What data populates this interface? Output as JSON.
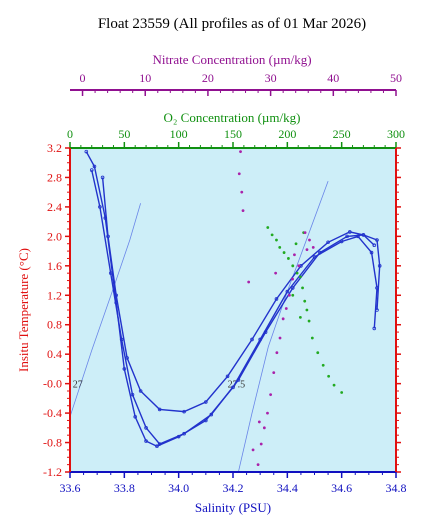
{
  "chart_data": {
    "type": "scatter",
    "title": "Float 23559  (All profiles as of 01 Mar 2026)",
    "x_axis": {
      "label": "Salinity (PSU)",
      "range": [
        33.6,
        34.8
      ],
      "ticks": [
        "33.6",
        "33.8",
        "34.0",
        "34.2",
        "34.4",
        "34.6",
        "34.8"
      ],
      "color": "#1010c0"
    },
    "y_axis": {
      "label": "Insitu Temperature (°C)",
      "range": [
        -1.2,
        3.2
      ],
      "ticks": [
        "-1.2",
        "-0.8",
        "-0.4",
        "-0.0",
        "0.4",
        "0.8",
        "1.2",
        "1.6",
        "2.0",
        "2.4",
        "2.8",
        "3.2"
      ],
      "color": "#e01010"
    },
    "oxygen_axis": {
      "label": "O₂ Concentration (µm/kg)",
      "range": [
        0,
        300
      ],
      "ticks": [
        "0",
        "50",
        "100",
        "150",
        "200",
        "250",
        "300"
      ],
      "color": "#109010"
    },
    "nitrate_axis": {
      "label": "Nitrate Concentration (µm/kg)",
      "range": [
        -2,
        50
      ],
      "ticks": [
        "0",
        "10",
        "20",
        "30",
        "40",
        "50"
      ],
      "color": "#901090"
    },
    "isopycnals": [
      {
        "label": "27",
        "points": [
          [
            33.6,
            -0.45
          ],
          [
            33.68,
            0.45
          ],
          [
            33.76,
            1.3
          ],
          [
            33.82,
            1.95
          ],
          [
            33.86,
            2.45
          ]
        ]
      },
      {
        "label": "27.5",
        "points": [
          [
            34.22,
            -1.2
          ],
          [
            34.27,
            -0.4
          ],
          [
            34.33,
            0.5
          ],
          [
            34.4,
            1.25
          ],
          [
            34.48,
            2.05
          ],
          [
            34.55,
            2.75
          ]
        ]
      }
    ],
    "isopycnal_label_positions": [
      [
        33.61,
        -0.05
      ],
      [
        34.18,
        -0.05
      ]
    ],
    "series": [
      {
        "type": "line",
        "color": "#2233cc",
        "points": [
          [
            33.66,
            3.15
          ],
          [
            33.69,
            2.95
          ],
          [
            33.73,
            2.25
          ],
          [
            33.77,
            1.1
          ],
          [
            33.8,
            0.2
          ],
          [
            33.84,
            -0.45
          ],
          [
            33.88,
            -0.78
          ],
          [
            33.92,
            -0.85
          ],
          [
            34.0,
            -0.72
          ],
          [
            34.1,
            -0.5
          ],
          [
            34.2,
            -0.05
          ],
          [
            34.3,
            0.6
          ],
          [
            34.4,
            1.25
          ],
          [
            34.5,
            1.72
          ],
          [
            34.6,
            1.93
          ],
          [
            34.66,
            2.0
          ],
          [
            34.71,
            1.78
          ],
          [
            34.73,
            1.3
          ],
          [
            34.72,
            0.75
          ]
        ]
      },
      {
        "type": "line",
        "color": "#2233cc",
        "points": [
          [
            33.68,
            2.9
          ],
          [
            33.71,
            2.4
          ],
          [
            33.75,
            1.5
          ],
          [
            33.79,
            0.6
          ],
          [
            33.83,
            -0.15
          ],
          [
            33.88,
            -0.6
          ],
          [
            33.93,
            -0.82
          ],
          [
            34.02,
            -0.68
          ],
          [
            34.12,
            -0.42
          ],
          [
            34.22,
            0.05
          ],
          [
            34.32,
            0.7
          ],
          [
            34.42,
            1.3
          ],
          [
            34.52,
            1.78
          ],
          [
            34.62,
            2.0
          ],
          [
            34.68,
            2.02
          ],
          [
            34.72,
            1.88
          ]
        ]
      },
      {
        "type": "line",
        "color": "#2233cc",
        "points": [
          [
            33.72,
            2.8
          ],
          [
            33.74,
            2.0
          ],
          [
            33.77,
            1.2
          ],
          [
            33.81,
            0.35
          ],
          [
            33.86,
            -0.1
          ],
          [
            33.93,
            -0.35
          ],
          [
            34.02,
            -0.38
          ],
          [
            34.1,
            -0.25
          ],
          [
            34.18,
            0.1
          ],
          [
            34.27,
            0.6
          ],
          [
            34.36,
            1.15
          ],
          [
            34.45,
            1.6
          ],
          [
            34.55,
            1.92
          ],
          [
            34.63,
            2.06
          ],
          [
            34.68,
            2.02
          ],
          [
            34.73,
            1.95
          ],
          [
            34.74,
            1.6
          ],
          [
            34.73,
            1.0
          ]
        ]
      },
      {
        "type": "scatter",
        "color": "#22aa22",
        "points": [
          [
            182,
            2.12
          ],
          [
            186,
            2.02
          ],
          [
            190,
            1.95
          ],
          [
            193,
            1.85
          ],
          [
            197,
            1.78
          ],
          [
            201,
            1.7
          ],
          [
            205,
            1.6
          ],
          [
            209,
            1.5
          ],
          [
            212,
            1.45
          ],
          [
            214,
            1.3
          ],
          [
            216,
            1.12
          ],
          [
            218,
            1.0
          ],
          [
            220,
            0.85
          ],
          [
            223,
            0.62
          ],
          [
            228,
            0.42
          ],
          [
            233,
            0.25
          ],
          [
            238,
            0.1
          ],
          [
            243,
            -0.02
          ],
          [
            250,
            -0.12
          ],
          [
            205,
            1.2
          ],
          [
            212,
            0.9
          ],
          [
            208,
            1.9
          ],
          [
            215,
            2.05
          ]
        ]
      },
      {
        "type": "scatter",
        "color": "#aa22aa",
        "points": [
          [
            25.2,
            3.15
          ],
          [
            25.0,
            2.85
          ],
          [
            25.4,
            2.6
          ],
          [
            25.6,
            2.35
          ],
          [
            35.5,
            2.05
          ],
          [
            36.2,
            1.95
          ],
          [
            35.8,
            1.82
          ],
          [
            34.5,
            1.6
          ],
          [
            33.5,
            1.42
          ],
          [
            33.0,
            1.2
          ],
          [
            32.5,
            1.02
          ],
          [
            32.0,
            0.88
          ],
          [
            31.5,
            0.62
          ],
          [
            31.0,
            0.42
          ],
          [
            30.5,
            0.15
          ],
          [
            30.0,
            -0.15
          ],
          [
            29.5,
            -0.4
          ],
          [
            29.0,
            -0.6
          ],
          [
            28.5,
            -0.82
          ],
          [
            28.0,
            -1.1
          ],
          [
            30.8,
            1.5
          ],
          [
            33.8,
            1.75
          ],
          [
            36.8,
            1.85
          ],
          [
            28.2,
            -0.52
          ],
          [
            26.5,
            1.38
          ],
          [
            27.2,
            -0.9
          ]
        ]
      }
    ]
  }
}
